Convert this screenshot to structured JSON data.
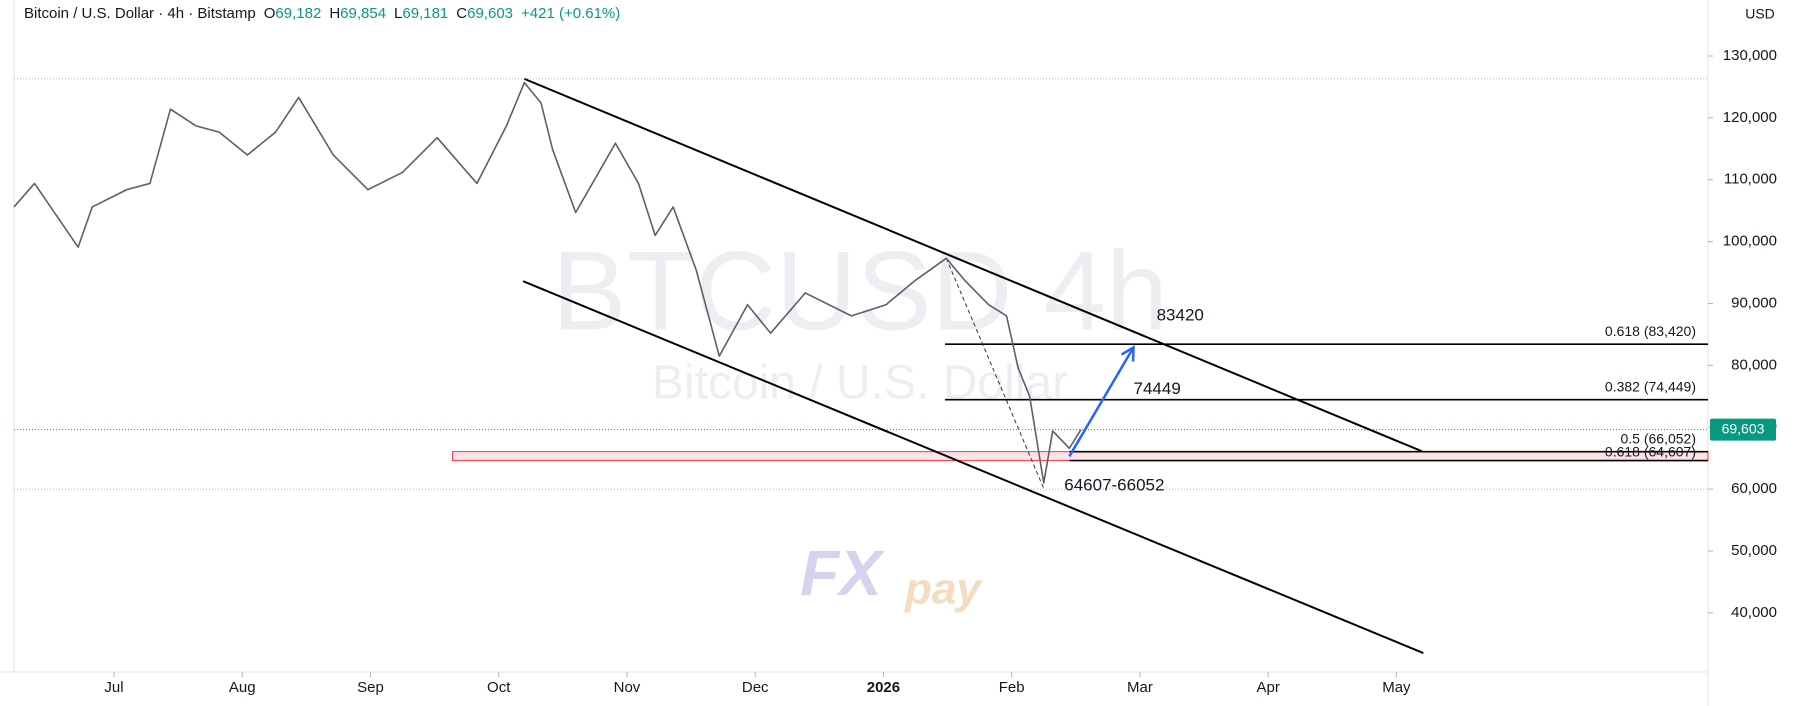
{
  "chart_data": {
    "type": "line",
    "title": "Bitcoin / U.S. Dollar · 4h · Bitstamp",
    "ohlc": [
      {
        "key": "O",
        "value": "69,182"
      },
      {
        "key": "H",
        "value": "69,854"
      },
      {
        "key": "L",
        "value": "69,181"
      },
      {
        "key": "C",
        "value": "69,603"
      }
    ],
    "change": "+421 (+0.61%)",
    "currency": "USD",
    "watermark": [
      "BTCUSD 4h",
      "Bitcoin / U.S. Dollar"
    ],
    "brand": [
      "FX",
      "pay"
    ],
    "color": "#5d606b",
    "x": [
      -0.78,
      -0.62,
      -0.28,
      -0.17,
      0.1,
      0.28,
      0.44,
      0.64,
      0.82,
      1.04,
      1.26,
      1.44,
      1.71,
      1.98,
      2.25,
      2.52,
      2.83,
      3.06,
      3.2,
      3.33,
      3.42,
      3.6,
      3.78,
      3.91,
      4.09,
      4.22,
      4.36,
      4.54,
      4.72,
      4.94,
      5.12,
      5.39,
      5.75,
      6.02,
      6.24,
      6.49,
      6.64,
      6.82,
      6.96,
      7.05,
      7.14,
      7.25,
      7.32,
      7.45,
      7.54
    ],
    "values": [
      105600,
      109400,
      99100,
      105600,
      108400,
      109400,
      121400,
      118700,
      117700,
      114000,
      117700,
      123300,
      114000,
      108400,
      111200,
      116800,
      109400,
      118700,
      125700,
      122400,
      114900,
      104700,
      111200,
      115900,
      109400,
      101000,
      105600,
      95400,
      81500,
      89800,
      85200,
      91700,
      88000,
      89800,
      93600,
      97300,
      93600,
      89800,
      88000,
      79600,
      75000,
      61000,
      69400,
      66600,
      69603
    ],
    "xlim": [
      -0.78,
      12.43
    ],
    "ylim": [
      31570,
      139050
    ],
    "xticks": [
      {
        "value": 0,
        "label": "Jul"
      },
      {
        "value": 1,
        "label": "Aug"
      },
      {
        "value": 2,
        "label": "Sep"
      },
      {
        "value": 3,
        "label": "Oct"
      },
      {
        "value": 4,
        "label": "Nov"
      },
      {
        "value": 5,
        "label": "Dec"
      },
      {
        "value": 6,
        "label": "2026"
      },
      {
        "value": 7,
        "label": "Feb"
      },
      {
        "value": 8,
        "label": "Mar"
      },
      {
        "value": 9,
        "label": "Apr"
      },
      {
        "value": 10,
        "label": "May"
      }
    ],
    "yticks": [
      {
        "value": 40000,
        "label": "40,000"
      },
      {
        "value": 50000,
        "label": "50,000"
      },
      {
        "value": 60000,
        "label": "60,000"
      },
      {
        "value": 70000,
        "label": "70,000"
      },
      {
        "value": 80000,
        "label": "80,000"
      },
      {
        "value": 90000,
        "label": "90,000"
      },
      {
        "value": 100000,
        "label": "100,000"
      },
      {
        "value": 110000,
        "label": "110,000"
      },
      {
        "value": 120000,
        "label": "120,000"
      },
      {
        "value": 130000,
        "label": "130,000"
      }
    ],
    "last_price": {
      "value": 69603,
      "label": "69,603"
    },
    "ref_lines": [
      {
        "value": 126300,
        "color": "#b2b5be"
      },
      {
        "value": 69603,
        "color": "#f23645"
      },
      {
        "value": 60000,
        "color": "#b2b5be"
      }
    ],
    "zone": {
      "low": 64607,
      "high": 66052,
      "x_start": 2.64,
      "color": "#f23645"
    },
    "fib_levels": [
      {
        "value": 83420,
        "label": "0.618 (83,420)",
        "x_start": 6.48
      },
      {
        "value": 74449,
        "label": "0.382 (74,449)",
        "x_start": 6.48
      },
      {
        "value": 66052,
        "label": "0.5 (66,052)",
        "x_start": 7.45
      },
      {
        "value": 64607,
        "label": "0.618 (64,607)",
        "x_start": 7.45
      }
    ],
    "channel": [
      [
        {
          "x": 3.2,
          "y": 126300
        },
        {
          "x": 10.2,
          "y": 66100
        }
      ],
      [
        {
          "x": 3.19,
          "y": 93600
        },
        {
          "x": 10.21,
          "y": 33500
        }
      ]
    ],
    "arrow": [
      {
        "x": 7.45,
        "y": 65300
      },
      {
        "x": 7.95,
        "y": 82900
      }
    ],
    "dashed": [
      {
        "x": 6.49,
        "y": 97300
      },
      {
        "x": 7.25,
        "y": 60100
      }
    ],
    "annotations": [
      {
        "text": "83420",
        "x": 8.13,
        "y": 88000
      },
      {
        "text": "74449",
        "x": 7.95,
        "y": 76100
      },
      {
        "text": "64607-66052",
        "x": 7.41,
        "y": 60500
      }
    ]
  }
}
